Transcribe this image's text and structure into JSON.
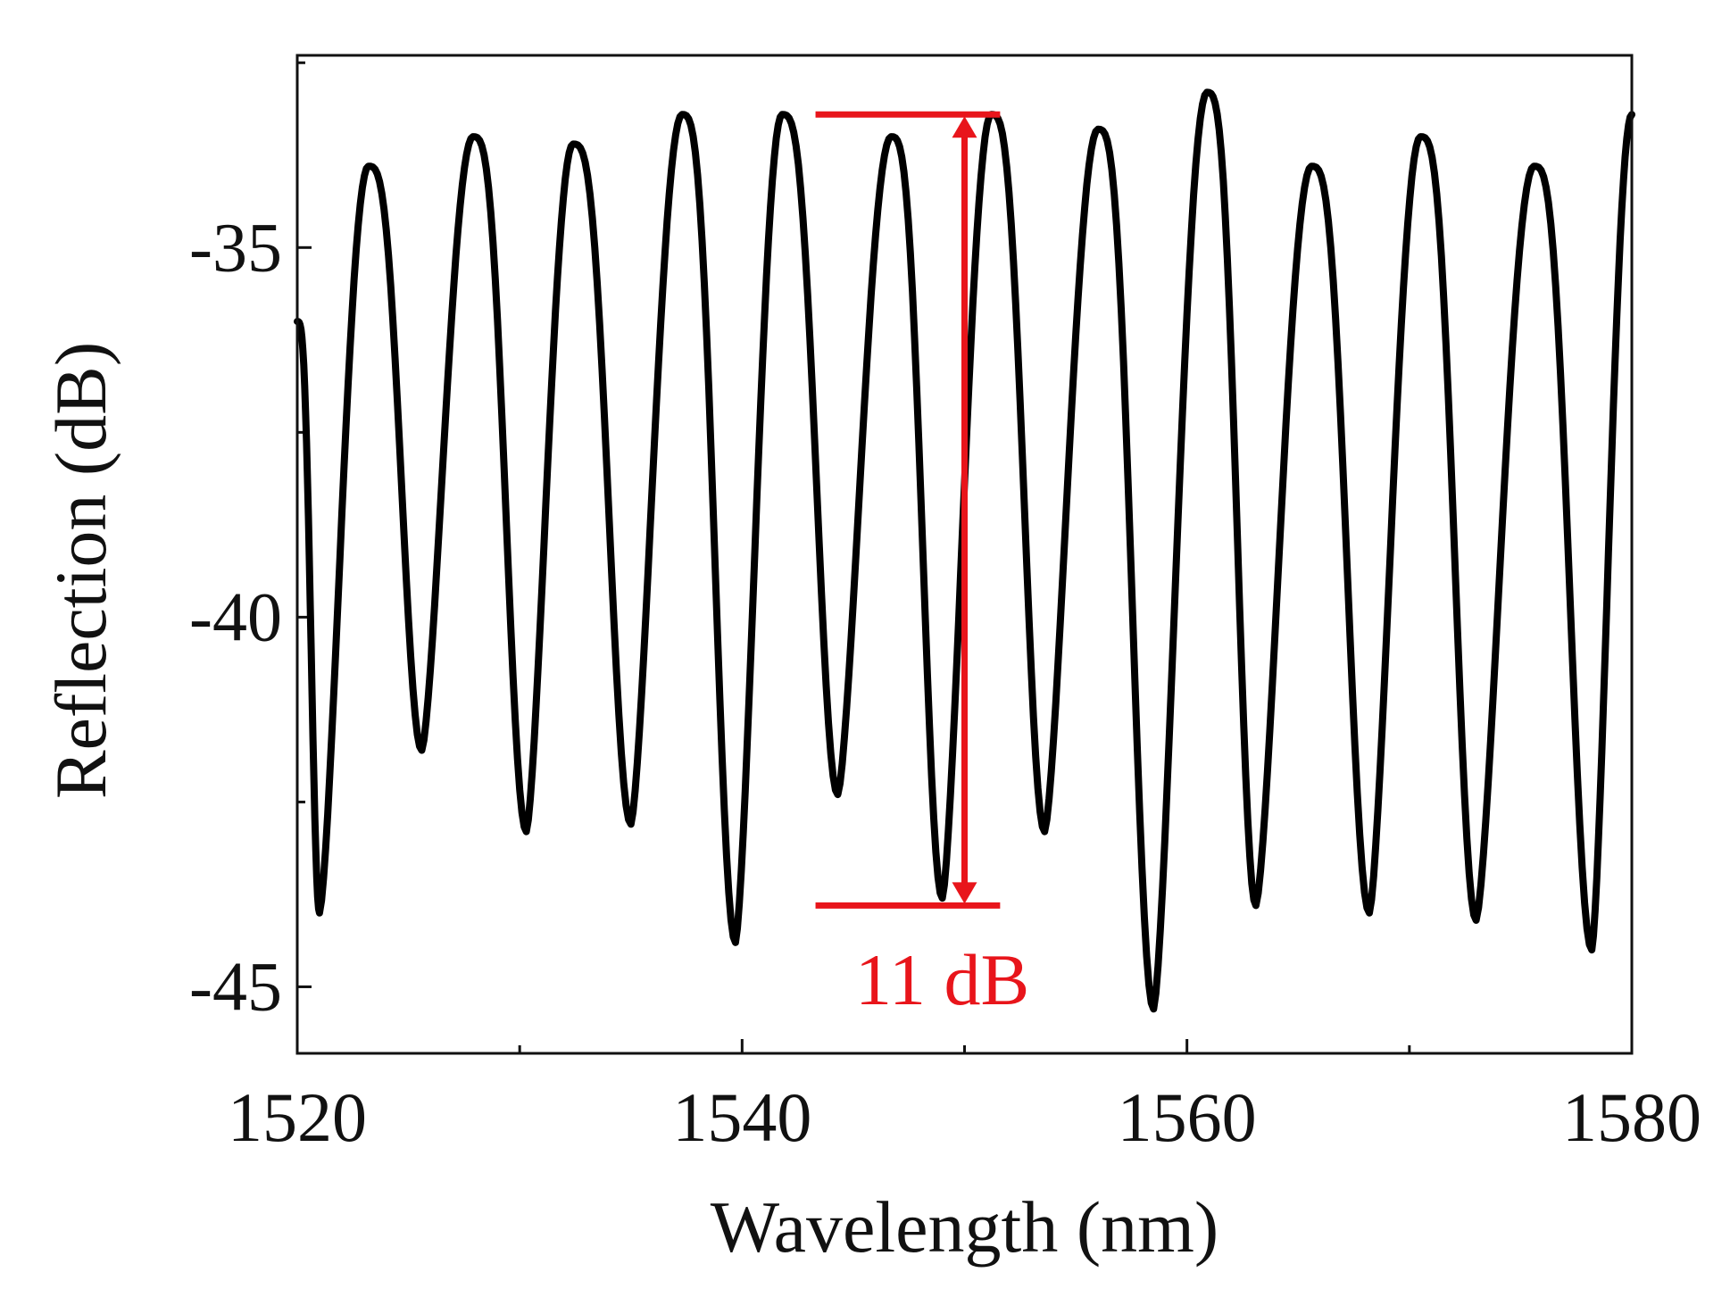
{
  "chart_data": {
    "type": "line",
    "title": "",
    "xlabel": "Wavelength (nm)",
    "ylabel": "Reflection (dB)",
    "xlim": [
      1520,
      1580
    ],
    "ylim": [
      -45.9,
      -32.4
    ],
    "xticks": [
      1520,
      1540,
      1560,
      1580
    ],
    "xtick_labels": [
      "1520",
      "1540",
      "1560",
      "1580"
    ],
    "xminor": [
      1530,
      1550,
      1570
    ],
    "yticks": [
      -35,
      -40,
      -45
    ],
    "ytick_labels": [
      "-35",
      "-40",
      "-45"
    ],
    "yminor": [
      -32.5,
      -37.5,
      -42.5
    ],
    "grid": false,
    "series": [
      {
        "name": "Reflection spectrum",
        "color": "#000000",
        "troughs": [
          [
            1521.0,
            -44.0
          ],
          [
            1525.6,
            -41.8
          ],
          [
            1530.3,
            -42.9
          ],
          [
            1535.0,
            -42.8
          ],
          [
            1539.7,
            -44.4
          ],
          [
            1544.3,
            -42.4
          ],
          [
            1549.0,
            -43.8
          ],
          [
            1553.6,
            -42.9
          ],
          [
            1558.5,
            -45.3
          ],
          [
            1563.1,
            -43.9
          ],
          [
            1568.2,
            -44.0
          ],
          [
            1573.0,
            -44.1
          ],
          [
            1578.2,
            -44.5
          ]
        ],
        "peaks": [
          [
            1523.2,
            -33.9
          ],
          [
            1527.9,
            -33.5
          ],
          [
            1532.4,
            -33.6
          ],
          [
            1537.3,
            -33.2
          ],
          [
            1541.8,
            -33.2
          ],
          [
            1546.7,
            -33.5
          ],
          [
            1551.2,
            -33.2
          ],
          [
            1556.0,
            -33.4
          ],
          [
            1560.9,
            -32.9
          ],
          [
            1565.6,
            -33.9
          ],
          [
            1570.5,
            -33.5
          ],
          [
            1575.6,
            -33.9
          ]
        ],
        "start": [
          1520,
          -36.0
        ],
        "end": [
          1580,
          -33.2
        ]
      }
    ],
    "annotations": [
      {
        "text": "11 dB",
        "color": "#e8151b",
        "x": 1550,
        "y_top": -33.2,
        "y_bottom": -43.9,
        "bar_x_range": [
          1543.3,
          1551.6
        ],
        "text_x": 1549,
        "text_y": -44.9
      }
    ]
  }
}
